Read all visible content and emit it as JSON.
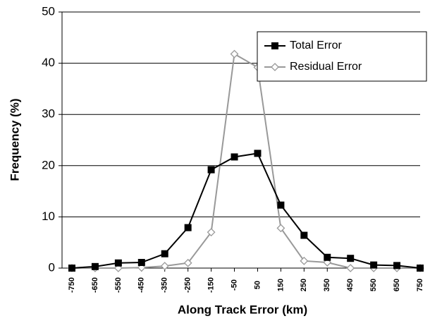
{
  "chart_data": {
    "type": "line",
    "categories": [
      "-750",
      "-650",
      "-550",
      "-450",
      "-350",
      "-250",
      "-150",
      "-50",
      "50",
      "150",
      "250",
      "350",
      "450",
      "550",
      "650",
      "750"
    ],
    "x_label": "Along Track Error (km)",
    "y_label": "Frequency (%)",
    "ylim": [
      0,
      50
    ],
    "yticks": [
      0,
      10,
      20,
      30,
      40,
      50
    ],
    "grid": true,
    "legend": "upper right",
    "series": [
      {
        "name": "Total Error",
        "color": "#000000",
        "marker": "square",
        "values": [
          0,
          0.3,
          1.0,
          1.1,
          2.8,
          7.9,
          19.2,
          21.7,
          22.4,
          12.3,
          6.4,
          2.1,
          1.9,
          0.6,
          0.5,
          0
        ]
      },
      {
        "name": "Residual Error",
        "color": "#999999",
        "marker": "diamond",
        "values": [
          0,
          0,
          0,
          0.1,
          0.4,
          1.0,
          7.0,
          41.8,
          39.2,
          7.8,
          1.4,
          1.1,
          0,
          0,
          0,
          0
        ]
      }
    ]
  }
}
